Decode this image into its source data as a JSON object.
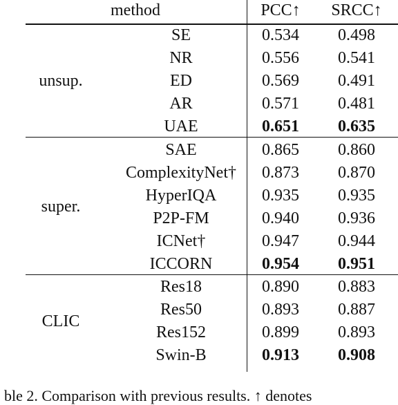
{
  "table": {
    "header": [
      "method",
      "PCC↑",
      "SRCC↑"
    ],
    "groups": [
      {
        "label": "unsup.",
        "rows": [
          {
            "method": "SE",
            "pcc": "0.534",
            "srcc": "0.498",
            "bold": false
          },
          {
            "method": "NR",
            "pcc": "0.556",
            "srcc": "0.541",
            "bold": false
          },
          {
            "method": "ED",
            "pcc": "0.569",
            "srcc": "0.491",
            "bold": false
          },
          {
            "method": "AR",
            "pcc": "0.571",
            "srcc": "0.481",
            "bold": false
          },
          {
            "method": "UAE",
            "pcc": "0.651",
            "srcc": "0.635",
            "bold": true
          }
        ]
      },
      {
        "label": "super.",
        "rows": [
          {
            "method": "SAE",
            "pcc": "0.865",
            "srcc": "0.860",
            "bold": false
          },
          {
            "method": "ComplexityNet†",
            "pcc": "0.873",
            "srcc": "0.870",
            "bold": false
          },
          {
            "method": "HyperIQA",
            "pcc": "0.935",
            "srcc": "0.935",
            "bold": false
          },
          {
            "method": "P2P-FM",
            "pcc": "0.940",
            "srcc": "0.936",
            "bold": false
          },
          {
            "method": "ICNet†",
            "pcc": "0.947",
            "srcc": "0.944",
            "bold": false
          },
          {
            "method": "ICCORN",
            "pcc": "0.954",
            "srcc": "0.951",
            "bold": true
          }
        ]
      },
      {
        "label": "CLIC",
        "rows": [
          {
            "method": "Res18",
            "pcc": "0.890",
            "srcc": "0.883",
            "bold": false
          },
          {
            "method": "Res50",
            "pcc": "0.893",
            "srcc": "0.887",
            "bold": false
          },
          {
            "method": "Res152",
            "pcc": "0.899",
            "srcc": "0.893",
            "bold": false
          },
          {
            "method": "Swin-B",
            "pcc": "0.913",
            "srcc": "0.908",
            "bold": true
          }
        ]
      }
    ],
    "caption": "ble 2. Comparison with previous results. ↑ denotes"
  }
}
